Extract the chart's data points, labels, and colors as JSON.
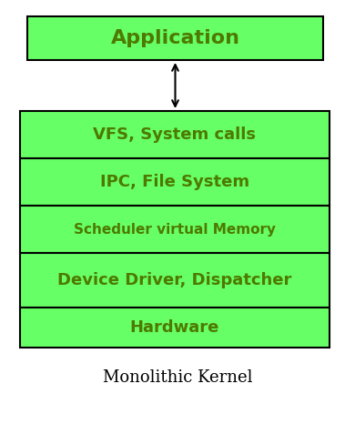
{
  "bg_color": "#ffffff",
  "box_fill": "#66ff66",
  "box_edge": "#000000",
  "text_color": "#4d7a00",
  "title_color": "#000000",
  "app_label": "Application",
  "kernel_layers": [
    "VFS, System calls",
    "IPC, File System",
    "Scheduler virtual Memory",
    "Device Driver, Dispatcher",
    "Hardware"
  ],
  "caption": "Monolithic Kernel",
  "font_sizes": {
    "app": 16,
    "vfs": 13,
    "ipc": 13,
    "scheduler": 11,
    "device": 13,
    "hardware": 13,
    "caption": 13
  }
}
